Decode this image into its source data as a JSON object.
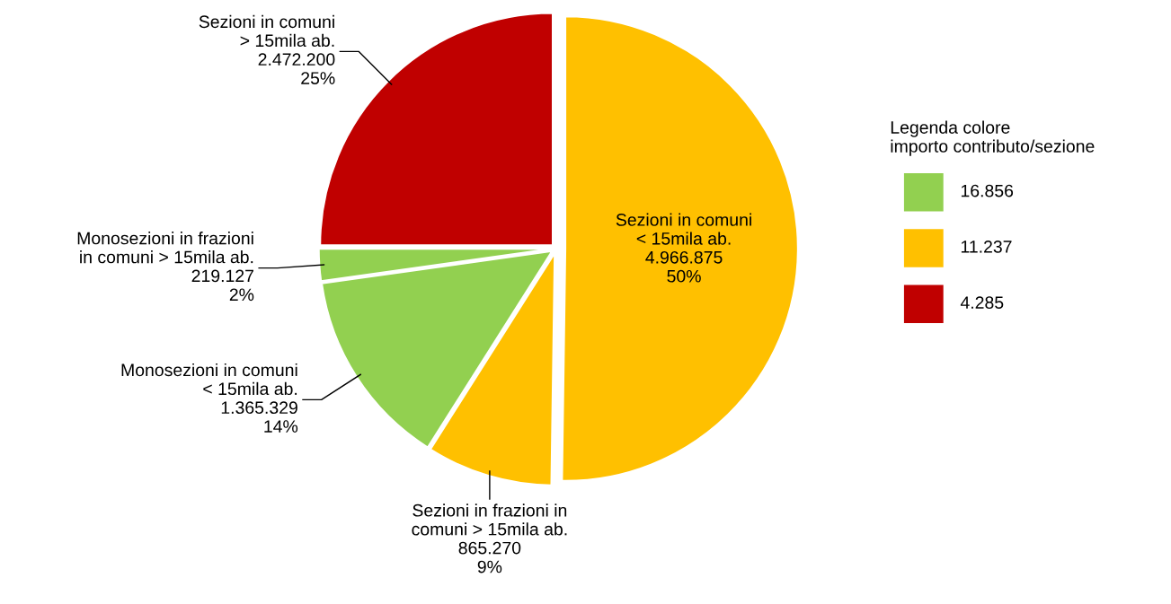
{
  "chart_data": [
    {
      "type": "pie",
      "categories": [
        "Sezioni in comuni\n< 15mila ab.",
        "Sezioni in frazioni in\ncomuni > 15mila ab.",
        "Monosezioni in comuni\n< 15mila ab.",
        "Monosezioni in frazioni\nin comuni > 15mila ab.",
        "Sezioni in comuni\n> 15mila ab."
      ],
      "values": [
        4966875,
        865270,
        1365329,
        219127,
        2472200
      ],
      "value_labels": [
        "4.966.875\n50%",
        "865.270\n9%",
        "1.365.329\n14%",
        "219.127\n2%",
        "2.472.200\n25%"
      ],
      "colors": [
        "#ffc000",
        "#ffc000",
        "#92d050",
        "#92d050",
        "#c00000"
      ]
    },
    {
      "type": "other",
      "title": "Legenda colore\nimporto contributo/sezione",
      "categories": [
        "16.856",
        "11.237",
        "4.285"
      ],
      "colors": [
        "#92d050",
        "#ffc000",
        "#c00000"
      ]
    }
  ]
}
